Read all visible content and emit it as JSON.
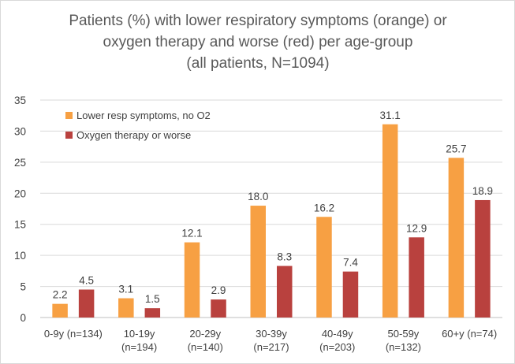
{
  "chart_data": {
    "type": "bar",
    "title_lines": [
      "Patients (%) with lower respiratory symptoms (orange) or",
      "oxygen therapy and worse (red) per age-group",
      "(all patients, N=1094)"
    ],
    "categories": [
      [
        "0-9y (n=134)"
      ],
      [
        "10-19y",
        "(n=194)"
      ],
      [
        "20-29y",
        "(n=140)"
      ],
      [
        "30-39y",
        "(n=217)"
      ],
      [
        "40-49y",
        "(n=203)"
      ],
      [
        "50-59y",
        "(n=132)"
      ],
      [
        "60+y (n=74)"
      ]
    ],
    "series": [
      {
        "name": "Lower resp symptoms, no O2",
        "color": "#f7a043",
        "values": [
          2.2,
          3.1,
          12.1,
          18.0,
          16.2,
          31.1,
          25.7
        ],
        "labels": [
          "2.2",
          "3.1",
          "12.1",
          "18.0",
          "16.2",
          "31.1",
          "25.7"
        ]
      },
      {
        "name": "Oxygen therapy or worse",
        "color": "#b9413e",
        "values": [
          4.5,
          1.5,
          2.9,
          8.3,
          7.4,
          12.9,
          18.9
        ],
        "labels": [
          "4.5",
          "1.5",
          "2.9",
          "8.3",
          "7.4",
          "12.9",
          "18.9"
        ]
      }
    ],
    "ylim": [
      0,
      35
    ],
    "yticks": [
      "0",
      "5",
      "10",
      "15",
      "20",
      "25",
      "30",
      "35"
    ],
    "grid": true,
    "legend": "top-left"
  }
}
